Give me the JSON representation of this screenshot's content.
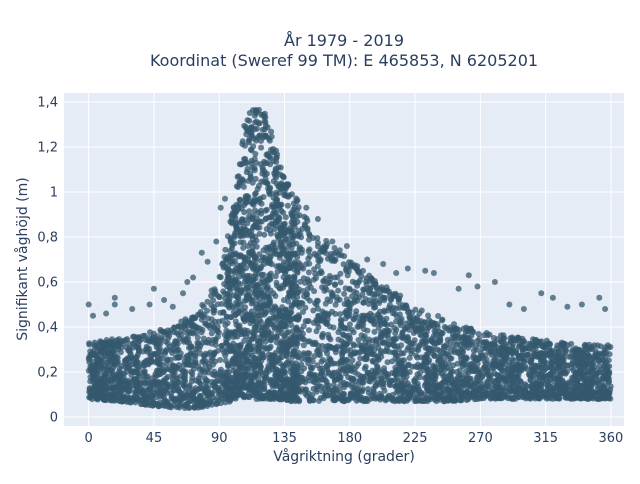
{
  "chart_data": {
    "type": "scatter",
    "title_lines": [
      "År 1979 - 2019",
      "Koordinat (Sweref 99 TM): E 465853, N 6205201"
    ],
    "xlabel": "Vågriktning (grader)",
    "ylabel": "Signifikant våghöjd (m)",
    "xlim": [
      -17,
      369
    ],
    "ylim": [
      -0.04,
      1.44
    ],
    "xticks": [
      0,
      45,
      90,
      135,
      180,
      225,
      270,
      315,
      360
    ],
    "xtick_labels": [
      "0",
      "45",
      "90",
      "135",
      "180",
      "225",
      "270",
      "315",
      "360"
    ],
    "yticks": [
      0,
      0.2,
      0.4,
      0.6,
      0.8,
      1.0,
      1.2,
      1.4
    ],
    "ytick_labels": [
      "0",
      "0,2",
      "0,4",
      "0,6",
      "0,8",
      "1",
      "1,2",
      "1,4"
    ],
    "grid": true,
    "marker_color": "#34586e",
    "plot_bg": "#e5ecf6",
    "envelope": {
      "direction": [
        0,
        20,
        45,
        60,
        75,
        90,
        100,
        108,
        115,
        122,
        130,
        140,
        160,
        180,
        200,
        225,
        250,
        270,
        300,
        330,
        360
      ],
      "upper_core": [
        0.33,
        0.35,
        0.38,
        0.41,
        0.47,
        0.62,
        0.95,
        1.33,
        1.38,
        1.35,
        1.2,
        1.0,
        0.82,
        0.7,
        0.6,
        0.5,
        0.42,
        0.38,
        0.35,
        0.33,
        0.32
      ],
      "lower_core": [
        0.08,
        0.07,
        0.05,
        0.04,
        0.04,
        0.06,
        0.07,
        0.08,
        0.08,
        0.08,
        0.08,
        0.07,
        0.07,
        0.07,
        0.07,
        0.07,
        0.07,
        0.08,
        0.08,
        0.08,
        0.08
      ]
    },
    "outliers": [
      {
        "x": 0,
        "y": 0.5
      },
      {
        "x": 3,
        "y": 0.45
      },
      {
        "x": 12,
        "y": 0.46
      },
      {
        "x": 18,
        "y": 0.5
      },
      {
        "x": 18,
        "y": 0.53
      },
      {
        "x": 30,
        "y": 0.48
      },
      {
        "x": 42,
        "y": 0.5
      },
      {
        "x": 45,
        "y": 0.57
      },
      {
        "x": 52,
        "y": 0.52
      },
      {
        "x": 58,
        "y": 0.49
      },
      {
        "x": 65,
        "y": 0.55
      },
      {
        "x": 68,
        "y": 0.6
      },
      {
        "x": 72,
        "y": 0.62
      },
      {
        "x": 78,
        "y": 0.73
      },
      {
        "x": 82,
        "y": 0.69
      },
      {
        "x": 88,
        "y": 0.78
      },
      {
        "x": 91,
        "y": 0.93
      },
      {
        "x": 94,
        "y": 0.97
      },
      {
        "x": 150,
        "y": 0.93
      },
      {
        "x": 158,
        "y": 0.88
      },
      {
        "x": 168,
        "y": 0.78
      },
      {
        "x": 178,
        "y": 0.76
      },
      {
        "x": 192,
        "y": 0.7
      },
      {
        "x": 203,
        "y": 0.68
      },
      {
        "x": 212,
        "y": 0.64
      },
      {
        "x": 220,
        "y": 0.66
      },
      {
        "x": 232,
        "y": 0.65
      },
      {
        "x": 238,
        "y": 0.64
      },
      {
        "x": 255,
        "y": 0.57
      },
      {
        "x": 262,
        "y": 0.63
      },
      {
        "x": 268,
        "y": 0.58
      },
      {
        "x": 280,
        "y": 0.6
      },
      {
        "x": 290,
        "y": 0.5
      },
      {
        "x": 300,
        "y": 0.48
      },
      {
        "x": 312,
        "y": 0.55
      },
      {
        "x": 320,
        "y": 0.53
      },
      {
        "x": 330,
        "y": 0.49
      },
      {
        "x": 340,
        "y": 0.5
      },
      {
        "x": 352,
        "y": 0.53
      },
      {
        "x": 356,
        "y": 0.48
      }
    ]
  }
}
